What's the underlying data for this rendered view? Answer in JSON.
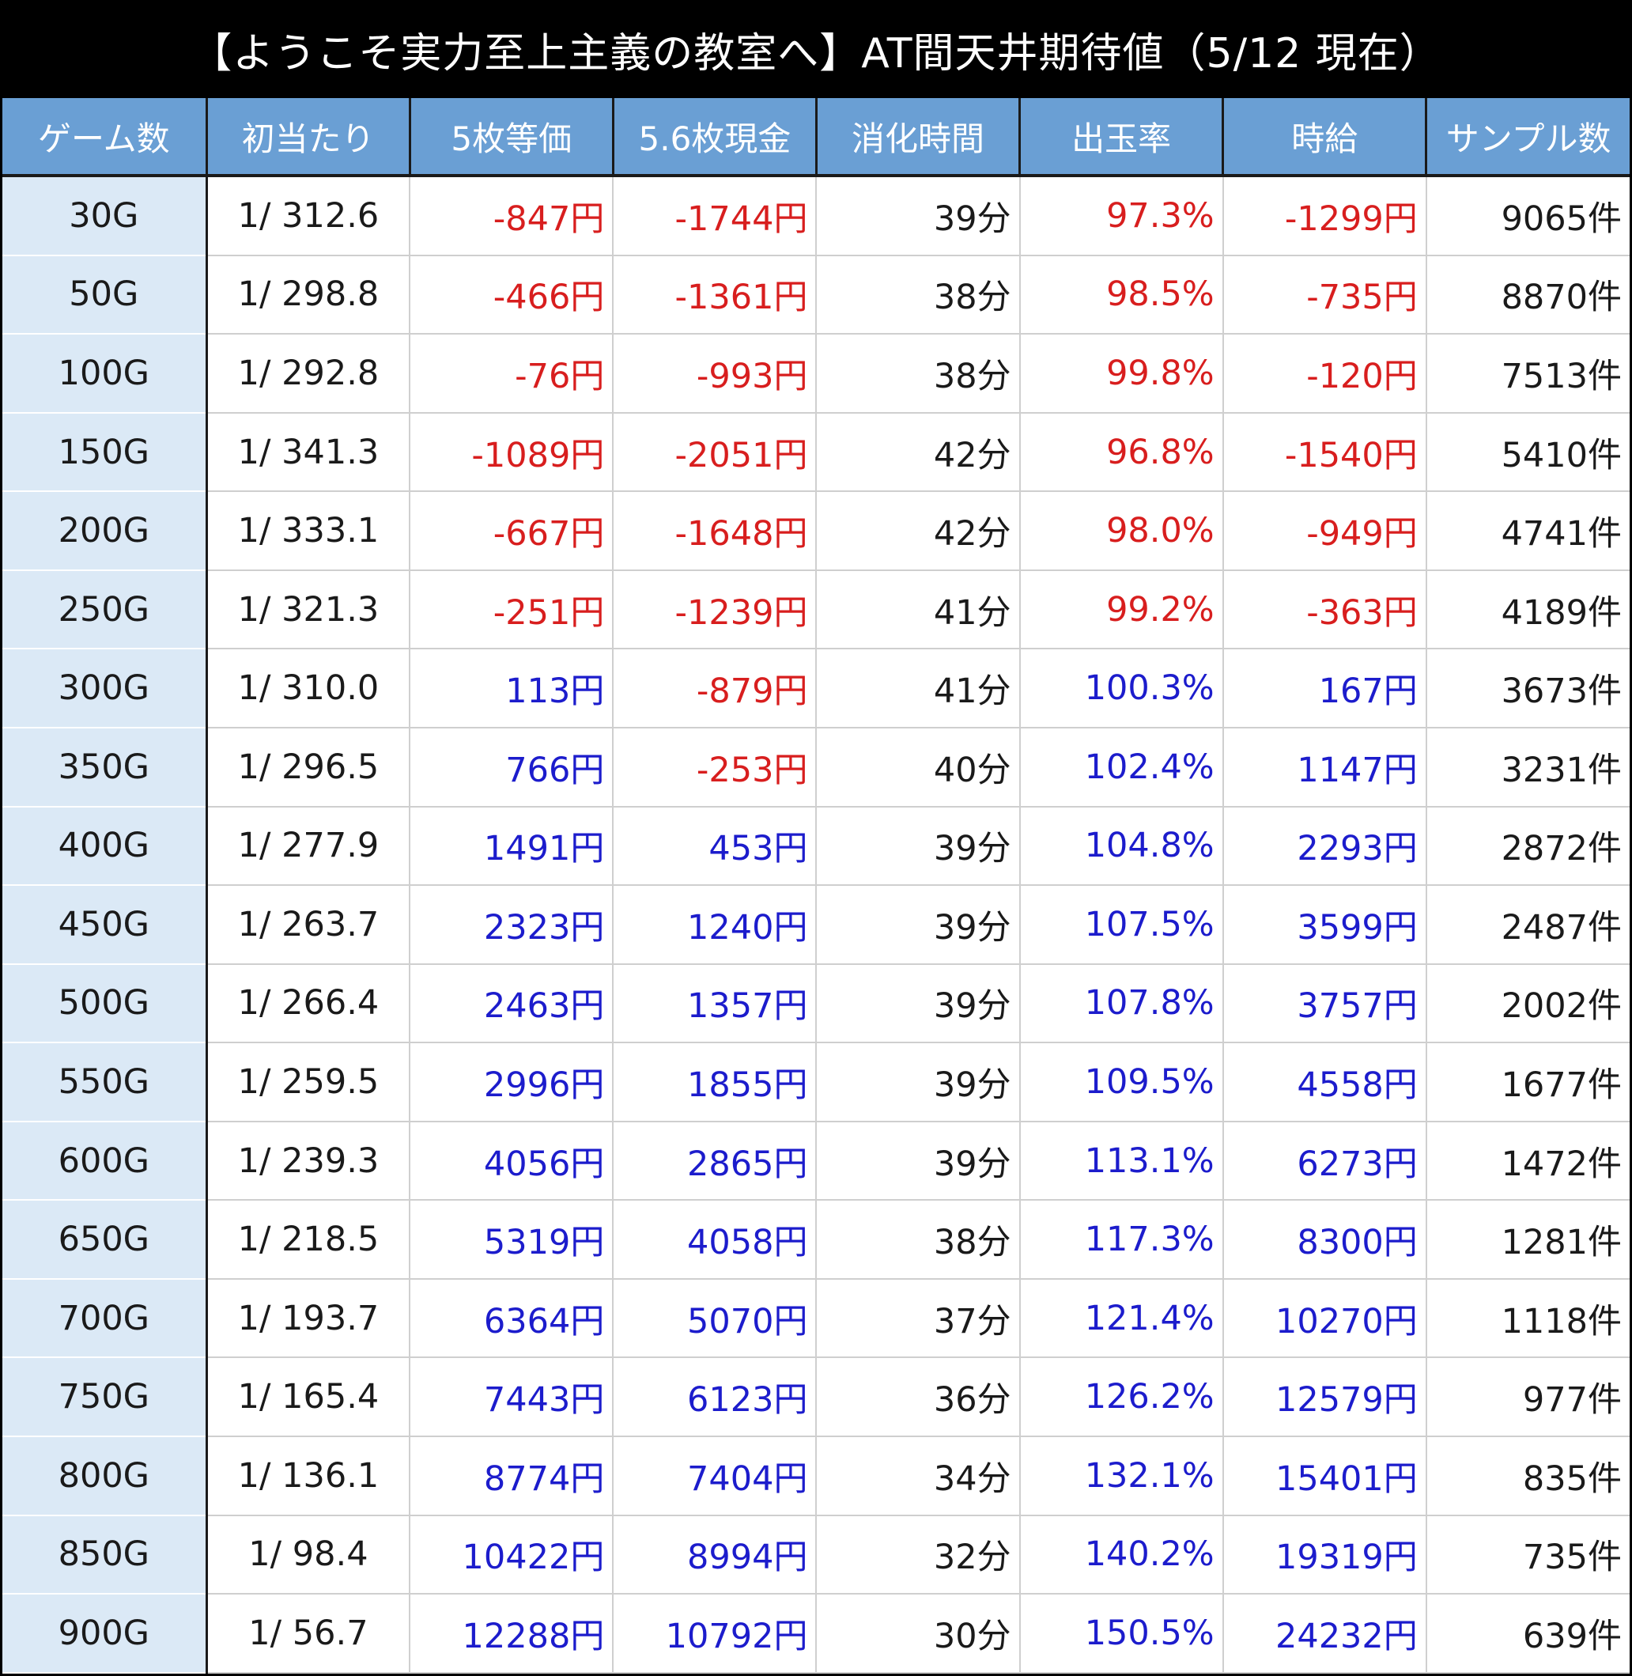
{
  "title": "【ようこそ実力至上主義の教室へ】AT間天井期待値（5/12 現在）",
  "colors": {
    "header_bg": "#6a9fd4",
    "game_col_bg": "#dbe9f6",
    "negative": "#d81e1e",
    "positive": "#1c1ccc"
  },
  "table": {
    "headers": [
      "ゲーム数",
      "初当たり",
      "5枚等価",
      "5.6枚現金",
      "消化時間",
      "出玉率",
      "時給",
      "サンプル数"
    ],
    "rows": [
      [
        "30G",
        "1/ 312.6",
        "-847円",
        "-1744円",
        "39分",
        "97.3%",
        "-1299円",
        "9065件"
      ],
      [
        "50G",
        "1/ 298.8",
        "-466円",
        "-1361円",
        "38分",
        "98.5%",
        "-735円",
        "8870件"
      ],
      [
        "100G",
        "1/ 292.8",
        "-76円",
        "-993円",
        "38分",
        "99.8%",
        "-120円",
        "7513件"
      ],
      [
        "150G",
        "1/ 341.3",
        "-1089円",
        "-2051円",
        "42分",
        "96.8%",
        "-1540円",
        "5410件"
      ],
      [
        "200G",
        "1/ 333.1",
        "-667円",
        "-1648円",
        "42分",
        "98.0%",
        "-949円",
        "4741件"
      ],
      [
        "250G",
        "1/ 321.3",
        "-251円",
        "-1239円",
        "41分",
        "99.2%",
        "-363円",
        "4189件"
      ],
      [
        "300G",
        "1/ 310.0",
        "113円",
        "-879円",
        "41分",
        "100.3%",
        "167円",
        "3673件"
      ],
      [
        "350G",
        "1/ 296.5",
        "766円",
        "-253円",
        "40分",
        "102.4%",
        "1147円",
        "3231件"
      ],
      [
        "400G",
        "1/ 277.9",
        "1491円",
        "453円",
        "39分",
        "104.8%",
        "2293円",
        "2872件"
      ],
      [
        "450G",
        "1/ 263.7",
        "2323円",
        "1240円",
        "39分",
        "107.5%",
        "3599円",
        "2487件"
      ],
      [
        "500G",
        "1/ 266.4",
        "2463円",
        "1357円",
        "39分",
        "107.8%",
        "3757円",
        "2002件"
      ],
      [
        "550G",
        "1/ 259.5",
        "2996円",
        "1855円",
        "39分",
        "109.5%",
        "4558円",
        "1677件"
      ],
      [
        "600G",
        "1/ 239.3",
        "4056円",
        "2865円",
        "39分",
        "113.1%",
        "6273円",
        "1472件"
      ],
      [
        "650G",
        "1/ 218.5",
        "5319円",
        "4058円",
        "38分",
        "117.3%",
        "8300円",
        "1281件"
      ],
      [
        "700G",
        "1/ 193.7",
        "6364円",
        "5070円",
        "37分",
        "121.4%",
        "10270円",
        "1118件"
      ],
      [
        "750G",
        "1/ 165.4",
        "7443円",
        "6123円",
        "36分",
        "126.2%",
        "12579円",
        "977件"
      ],
      [
        "800G",
        "1/ 136.1",
        "8774円",
        "7404円",
        "34分",
        "132.1%",
        "15401円",
        "835件"
      ],
      [
        "850G",
        "1/ 98.4",
        "10422円",
        "8994円",
        "32分",
        "140.2%",
        "19319円",
        "735件"
      ],
      [
        "900G",
        "1/ 56.7",
        "12288円",
        "10792円",
        "30分",
        "150.5%",
        "24232円",
        "639件"
      ]
    ]
  }
}
